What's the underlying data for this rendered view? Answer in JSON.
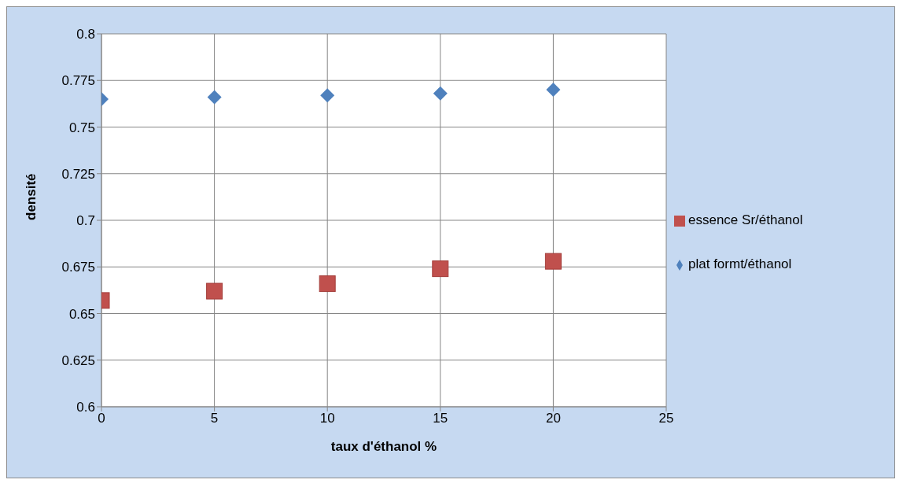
{
  "chart_data": {
    "type": "scatter",
    "xlabel": "taux d'éthanol %",
    "ylabel": "densité",
    "x": [
      0,
      5,
      10,
      15,
      20
    ],
    "series": [
      {
        "name": "plat formt/éthanol",
        "color": "#4f81bd",
        "marker": "diamond",
        "values": [
          0.765,
          0.766,
          0.767,
          0.768,
          0.77
        ]
      },
      {
        "name": "essence Sr/éthanol",
        "color": "#c0504d",
        "marker": "square",
        "values": [
          0.657,
          0.662,
          0.666,
          0.674,
          0.678
        ]
      }
    ],
    "xlim": [
      0,
      25
    ],
    "xticks": [
      0,
      5,
      10,
      15,
      20,
      25
    ],
    "ylim": [
      0.6,
      0.8
    ],
    "yticks": [
      0.6,
      0.625,
      0.65,
      0.675,
      0.7,
      0.725,
      0.75,
      0.775,
      0.8
    ],
    "grid": true,
    "legend": "right"
  }
}
